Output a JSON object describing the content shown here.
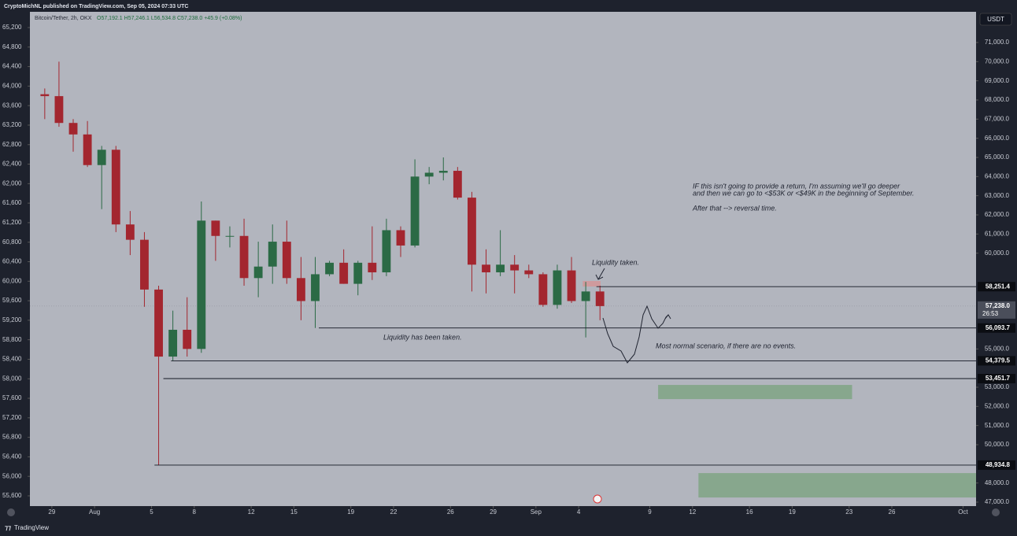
{
  "header": {
    "publisher": "CryptoMichNL published on TradingView.com, Sep 05, 2024 07:33 UTC",
    "currency": "USDT",
    "footer": "TradingView"
  },
  "chart_data": {
    "type": "candlestick",
    "title": "Bitcoin/Tether, 2h, OKX",
    "ohlc_readout": "O57,192.1 H57,246.1 L56,534.8 C57,238.0 +45.9 (+0.08%)",
    "x": [
      "2024-07-28",
      "2024-07-29",
      "2024-07-30",
      "2024-07-31",
      "2024-08-01",
      "2024-08-02",
      "2024-08-03",
      "2024-08-04",
      "2024-08-05",
      "2024-08-06",
      "2024-08-07",
      "2024-08-08",
      "2024-08-09",
      "2024-08-10",
      "2024-08-11",
      "2024-08-12",
      "2024-08-13",
      "2024-08-14",
      "2024-08-15",
      "2024-08-16",
      "2024-08-17",
      "2024-08-18",
      "2024-08-19",
      "2024-08-20",
      "2024-08-21",
      "2024-08-22",
      "2024-08-23",
      "2024-08-24",
      "2024-08-25",
      "2024-08-26",
      "2024-08-27",
      "2024-08-28",
      "2024-08-29",
      "2024-08-30",
      "2024-08-31",
      "2024-09-01",
      "2024-09-02",
      "2024-09-03",
      "2024-09-04",
      "2024-09-05"
    ],
    "series": [
      {
        "axis": "y2",
        "up_color": "#2b6a45",
        "down_color": "#a3262f",
        "open": [
          68300,
          68200,
          66800,
          66200,
          64600,
          65400,
          61500,
          60700,
          58100,
          54600,
          56000,
          55000,
          61700,
          60900,
          60900,
          58700,
          59300,
          60600,
          58700,
          57500,
          58900,
          59500,
          58400,
          59500,
          59000,
          61200,
          60400,
          64000,
          64200,
          64300,
          62900,
          59400,
          59000,
          59400,
          59100,
          58900,
          57300,
          59100,
          57500,
          58000
        ],
        "high": [
          68600,
          70000,
          67000,
          66900,
          65600,
          65600,
          62200,
          61100,
          58300,
          57000,
          57700,
          62700,
          61700,
          61400,
          61800,
          60600,
          61500,
          61700,
          59800,
          59800,
          59600,
          60200,
          59600,
          61400,
          61800,
          61400,
          64900,
          64500,
          65000,
          64500,
          63200,
          60200,
          61200,
          59900,
          59400,
          59000,
          59400,
          59800,
          58500,
          58300
        ],
        "low": [
          67000,
          66600,
          65300,
          64500,
          62300,
          61100,
          59900,
          57200,
          48934.8,
          54379.5,
          54600,
          54800,
          59600,
          60300,
          58300,
          57700,
          58400,
          58400,
          56500,
          56093.7,
          58800,
          58400,
          57800,
          58600,
          58800,
          59800,
          60300,
          63600,
          63800,
          62800,
          58000,
          57900,
          58800,
          57900,
          58700,
          57200,
          57100,
          57400,
          55600,
          56500
        ],
        "close": [
          68200,
          66800,
          66200,
          64600,
          65400,
          61500,
          60700,
          58100,
          54600,
          56000,
          55000,
          61700,
          60900,
          60900,
          58700,
          59300,
          60600,
          58700,
          57500,
          58900,
          59500,
          58400,
          59500,
          59000,
          61200,
          60400,
          64000,
          64200,
          64300,
          62900,
          59400,
          59000,
          59400,
          59100,
          58900,
          57300,
          59100,
          57500,
          58000,
          57238
        ]
      }
    ],
    "xlim": [
      "2024-07-27T11:00",
      "2024-10-01T22:00"
    ],
    "xticks": [
      {
        "value": "2024-07-29",
        "label": "29"
      },
      {
        "value": "2024-08-01",
        "label": "Aug"
      },
      {
        "value": "2024-08-05",
        "label": "5"
      },
      {
        "value": "2024-08-08",
        "label": "8"
      },
      {
        "value": "2024-08-12",
        "label": "12"
      },
      {
        "value": "2024-08-15",
        "label": "15"
      },
      {
        "value": "2024-08-19",
        "label": "19"
      },
      {
        "value": "2024-08-22",
        "label": "22"
      },
      {
        "value": "2024-08-26",
        "label": "26"
      },
      {
        "value": "2024-08-29",
        "label": "29"
      },
      {
        "value": "2024-09-01",
        "label": "Sep"
      },
      {
        "value": "2024-09-04",
        "label": "4"
      },
      {
        "value": "2024-09-09",
        "label": "9"
      },
      {
        "value": "2024-09-12",
        "label": "12"
      },
      {
        "value": "2024-09-16",
        "label": "16"
      },
      {
        "value": "2024-09-19",
        "label": "19"
      },
      {
        "value": "2024-09-23",
        "label": "23"
      },
      {
        "value": "2024-09-26",
        "label": "26"
      },
      {
        "value": "2024-10-01",
        "label": "Oct"
      }
    ],
    "ylim": [
      55390,
      65523
    ],
    "yticks": [
      {
        "value": 55600,
        "label": "55,600"
      },
      {
        "value": 56000,
        "label": "56,000"
      },
      {
        "value": 56400,
        "label": "56,400"
      },
      {
        "value": 56800,
        "label": "56,800"
      },
      {
        "value": 57200,
        "label": "57,200"
      },
      {
        "value": 57600,
        "label": "57,600"
      },
      {
        "value": 58000,
        "label": "58,000"
      },
      {
        "value": 58400,
        "label": "58,400"
      },
      {
        "value": 58800,
        "label": "58,800"
      },
      {
        "value": 59200,
        "label": "59,200"
      },
      {
        "value": 59600,
        "label": "59,600"
      },
      {
        "value": 60000,
        "label": "60,000"
      },
      {
        "value": 60400,
        "label": "60,400"
      },
      {
        "value": 60800,
        "label": "60,800"
      },
      {
        "value": 61200,
        "label": "61,200"
      },
      {
        "value": 61600,
        "label": "61,600"
      },
      {
        "value": 62000,
        "label": "62,000"
      },
      {
        "value": 62400,
        "label": "62,400"
      },
      {
        "value": 62800,
        "label": "62,800"
      },
      {
        "value": 63200,
        "label": "63,200"
      },
      {
        "value": 63600,
        "label": "63,600"
      },
      {
        "value": 64000,
        "label": "64,000"
      },
      {
        "value": 64400,
        "label": "64,400"
      },
      {
        "value": 64800,
        "label": "64,800"
      },
      {
        "value": 65200,
        "label": "65,200"
      }
    ],
    "y2lim": [
      46794,
      72603
    ],
    "y2ticks": [
      {
        "value": 47000,
        "label": "47,000.0"
      },
      {
        "value": 48000,
        "label": "48,000.0"
      },
      {
        "value": 50000,
        "label": "50,000.0"
      },
      {
        "value": 51000,
        "label": "51,000.0"
      },
      {
        "value": 52000,
        "label": "52,000.0"
      },
      {
        "value": 53000,
        "label": "53,000.0"
      },
      {
        "value": 55000,
        "label": "55,000.0"
      },
      {
        "value": 60000,
        "label": "60,000.0"
      },
      {
        "value": 61000,
        "label": "61,000.0"
      },
      {
        "value": 62000,
        "label": "62,000.0"
      },
      {
        "value": 63000,
        "label": "63,000.0"
      },
      {
        "value": 64000,
        "label": "64,000.0"
      },
      {
        "value": 65000,
        "label": "65,000.0"
      },
      {
        "value": 66000,
        "label": "66,000.0"
      },
      {
        "value": 67000,
        "label": "67,000.0"
      },
      {
        "value": 68000,
        "label": "68,000.0"
      },
      {
        "value": 69000,
        "label": "69,000.0"
      },
      {
        "value": 70000,
        "label": "70,000.0"
      },
      {
        "value": 71000,
        "label": "71,000.0"
      }
    ],
    "last_price": {
      "value": 57238.0,
      "label": "57,238.0",
      "countdown": "26:53"
    },
    "levels": [
      {
        "value": 58251.4,
        "label": "58,251.4",
        "start": "2024-09-05T06:00"
      },
      {
        "value": 56093.7,
        "label": "56,093.7",
        "start": "2024-08-16T18:00"
      },
      {
        "value": 54379.5,
        "label": "54,379.5",
        "start": "2024-08-06T09:00"
      },
      {
        "value": 53451.7,
        "label": "53,451.7",
        "start": "2024-08-05T20:00"
      },
      {
        "value": 48934.8,
        "label": "48,934.8",
        "start": "2024-08-05T05:00"
      }
    ],
    "zones": [
      {
        "top": 58546,
        "bottom": 58259,
        "start": "2024-09-04T07:00",
        "end": "2024-09-05T13:00",
        "color": "#cf9a9d"
      },
      {
        "top": 53120,
        "bottom": 52380,
        "start": "2024-09-09T14:00",
        "end": "2024-09-23T05:00",
        "color": "#87a78d"
      },
      {
        "top": 48517,
        "bottom": 47243,
        "start": "2024-09-12T10:00",
        "end": "2024-10-01T22:00",
        "color": "#87a78d"
      }
    ],
    "annotations": [
      "IF this isn't going to provide a return, I'm assuming we'll go deeper",
      "and then we can go to <$53K or <$49K in the beginning of September.",
      "After that --> reversal time.",
      "Liquidity taken.",
      "Liquidity has been taken.",
      "Most normal scenario, if there are no events."
    ]
  }
}
